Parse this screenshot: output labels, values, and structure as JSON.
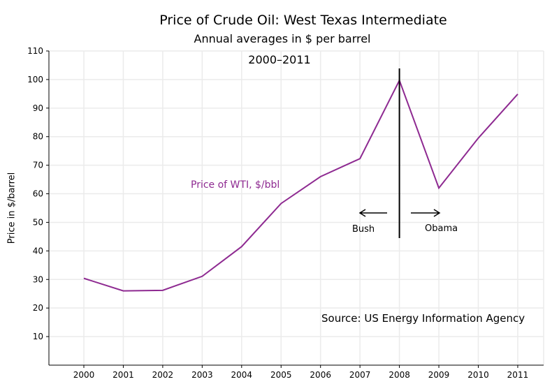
{
  "chart_data": {
    "type": "line",
    "title": "Price of Crude Oil:  West Texas Intermediate",
    "subtitle": "Annual averages in $ per barrel",
    "subtitle2": "2000–2011",
    "xlabel": "",
    "ylabel": "Price in $/barrel",
    "ylim": [
      0,
      110
    ],
    "yticks": [
      10,
      20,
      30,
      40,
      50,
      60,
      70,
      80,
      90,
      100,
      110
    ],
    "x": [
      2000,
      2001,
      2002,
      2003,
      2004,
      2005,
      2006,
      2007,
      2008,
      2009,
      2010,
      2011
    ],
    "grid": true,
    "series": [
      {
        "name": "Price of WTI, $/bbl",
        "color": "#8e2a91",
        "values": [
          30.4,
          26.0,
          26.2,
          31.1,
          41.5,
          56.6,
          66.0,
          72.3,
          99.7,
          62.0,
          79.5,
          94.9
        ]
      }
    ],
    "annotations": {
      "divider_year": 2008,
      "left_label": "Bush",
      "right_label": "Obama",
      "source": "Source: US Energy Information Agency"
    }
  }
}
